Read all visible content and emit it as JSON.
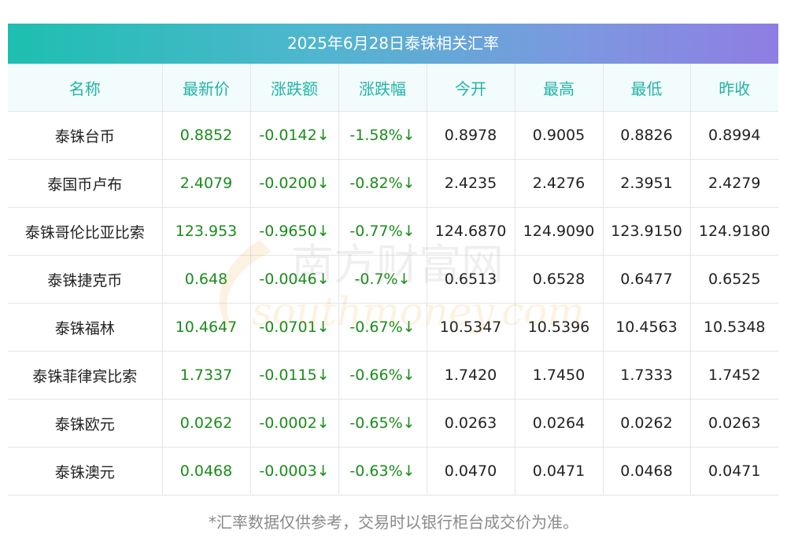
{
  "title": "2025年6月28日泰铢相关汇率",
  "columns": [
    "名称",
    "最新价",
    "涨跌额",
    "涨跌幅",
    "今开",
    "最高",
    "最低",
    "昨收"
  ],
  "rows": [
    {
      "name": "泰铢台币",
      "latest": "0.8852",
      "change": "-0.0142↓",
      "change_pct": "-1.58%↓",
      "open": "0.8978",
      "high": "0.9005",
      "low": "0.8826",
      "prev_close": "0.8994"
    },
    {
      "name": "泰国币卢布",
      "latest": "2.4079",
      "change": "-0.0200↓",
      "change_pct": "-0.82%↓",
      "open": "2.4235",
      "high": "2.4276",
      "low": "2.3951",
      "prev_close": "2.4279"
    },
    {
      "name": "泰铢哥伦比亚比索",
      "latest": "123.953",
      "change": "-0.9650↓",
      "change_pct": "-0.77%↓",
      "open": "124.6870",
      "high": "124.9090",
      "low": "123.9150",
      "prev_close": "124.9180"
    },
    {
      "name": "泰铢捷克币",
      "latest": "0.648",
      "change": "-0.0046↓",
      "change_pct": "-0.7%↓",
      "open": "0.6513",
      "high": "0.6528",
      "low": "0.6477",
      "prev_close": "0.6525"
    },
    {
      "name": "泰铢福林",
      "latest": "10.4647",
      "change": "-0.0701↓",
      "change_pct": "-0.67%↓",
      "open": "10.5347",
      "high": "10.5396",
      "low": "10.4563",
      "prev_close": "10.5348"
    },
    {
      "name": "泰铢菲律宾比索",
      "latest": "1.7337",
      "change": "-0.0115↓",
      "change_pct": "-0.66%↓",
      "open": "1.7420",
      "high": "1.7450",
      "low": "1.7333",
      "prev_close": "1.7452"
    },
    {
      "name": "泰铢欧元",
      "latest": "0.0262",
      "change": "-0.0002↓",
      "change_pct": "-0.65%↓",
      "open": "0.0263",
      "high": "0.0264",
      "low": "0.0262",
      "prev_close": "0.0263"
    },
    {
      "name": "泰铢澳元",
      "latest": "0.0468",
      "change": "-0.0003↓",
      "change_pct": "-0.63%↓",
      "open": "0.0470",
      "high": "0.0471",
      "low": "0.0468",
      "prev_close": "0.0471"
    }
  ],
  "watermark": {
    "cn": "南方财富网",
    "en": "southmoney.com"
  },
  "footnote": "*汇率数据仅供参考，交易时以银行柜台成交价为准。",
  "colors": {
    "header_text": "#22b3a6",
    "down": "#1a8c1a",
    "title_start": "#1dbfb0",
    "title_end": "#8f7de3"
  }
}
